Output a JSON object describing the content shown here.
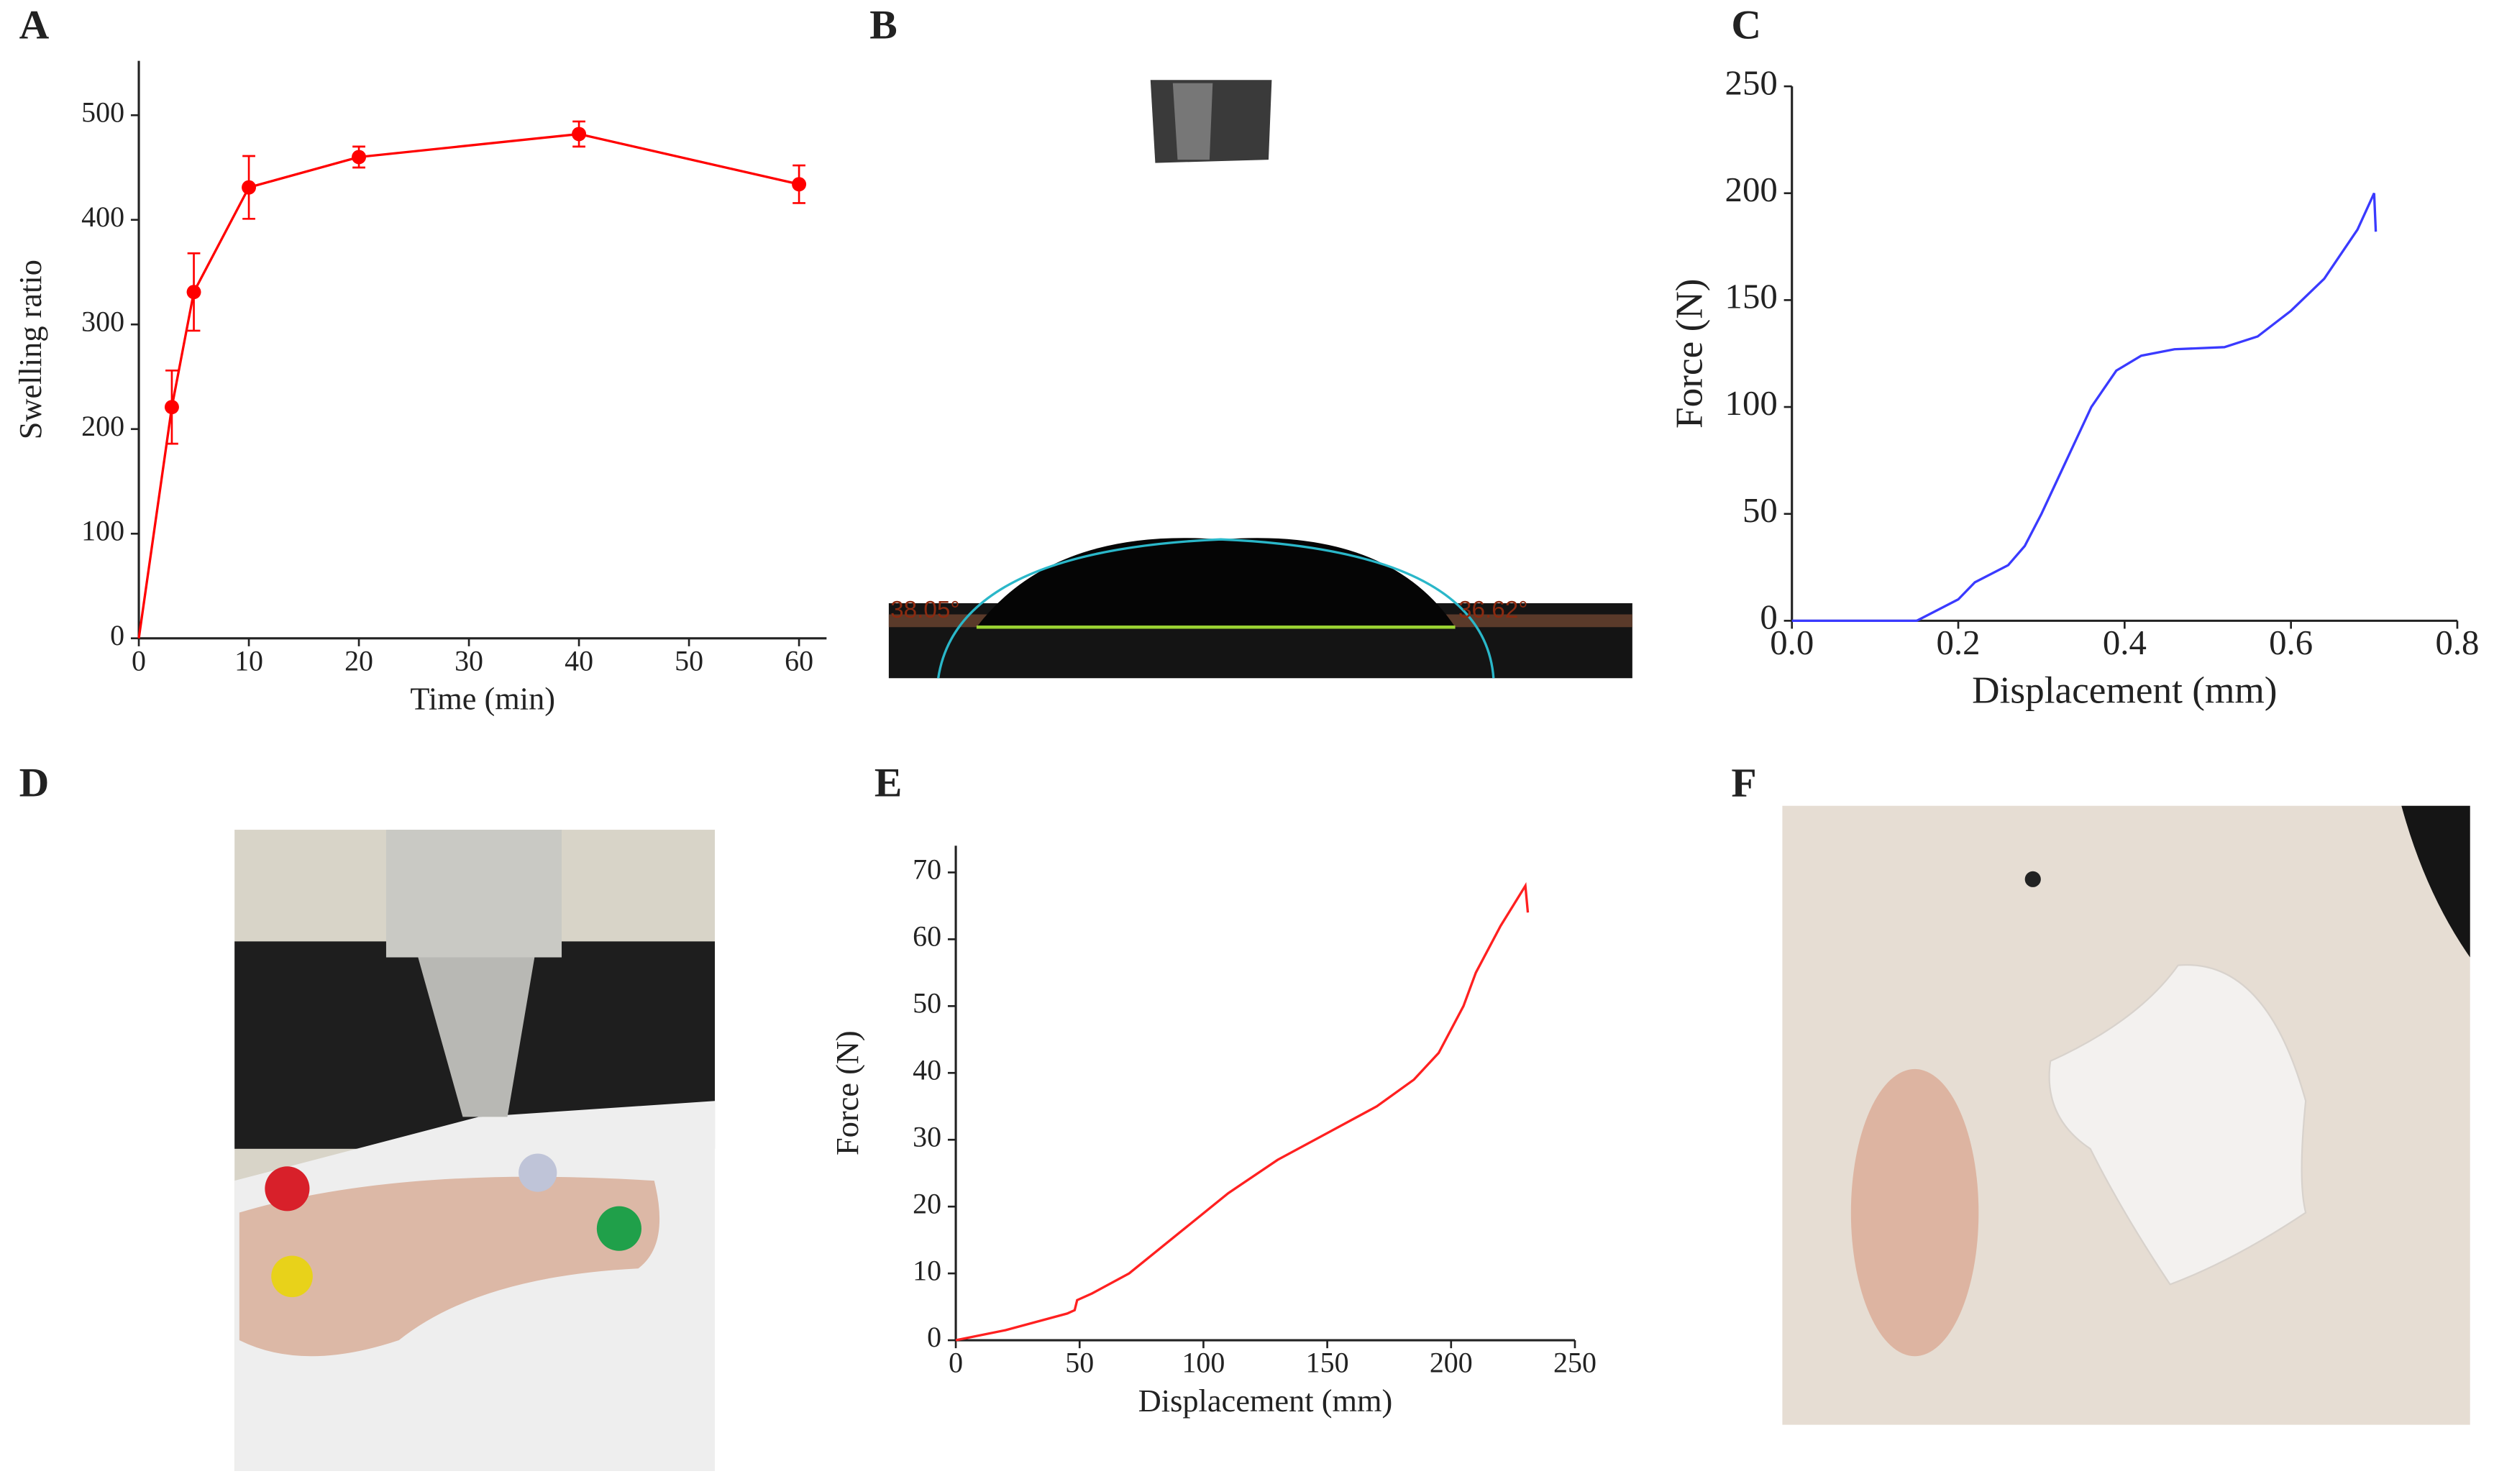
{
  "panel_labels": [
    "A",
    "B",
    "C",
    "D",
    "E",
    "F"
  ],
  "photo_b": {
    "angle_left": "38.05°",
    "angle_right": "36.62°"
  },
  "chart_data": [
    {
      "type": "line",
      "xlabel": "Time (min)",
      "ylabel": "Swelling ratio",
      "color": "#ff0000",
      "marker": "circle",
      "x": [
        0,
        3,
        5,
        10,
        20,
        40,
        60
      ],
      "values": [
        0,
        221,
        331,
        431,
        460,
        482,
        434
      ],
      "errors": [
        null,
        35,
        37,
        30,
        10,
        12,
        18
      ],
      "xlim": [
        0,
        62.5
      ],
      "xticks": [
        0,
        10,
        20,
        30,
        40,
        50,
        60
      ],
      "ylim": [
        0,
        552
      ],
      "yticks": [
        0,
        100,
        200,
        300,
        400,
        500
      ]
    },
    {
      "type": "line",
      "xlabel": "Displacement (mm)",
      "ylabel": "Force (N)",
      "color": "#3a3aff",
      "x": [
        0,
        0.15,
        0.2,
        0.22,
        0.26,
        0.28,
        0.3,
        0.33,
        0.36,
        0.39,
        0.42,
        0.46,
        0.52,
        0.56,
        0.6,
        0.64,
        0.68,
        0.7,
        0.702
      ],
      "values": [
        0,
        0,
        10,
        18,
        26,
        35,
        50,
        75,
        100,
        117,
        124,
        127,
        128,
        133,
        145,
        160,
        183,
        200,
        182
      ],
      "xlim": [
        0,
        0.8
      ],
      "xticks": [
        {
          "value": 0,
          "label": "0.0"
        },
        0.2,
        0.4,
        0.6,
        0.8
      ],
      "ylim": [
        0,
        250
      ],
      "yticks": [
        0,
        50,
        100,
        150,
        200,
        250
      ]
    },
    {
      "type": "line",
      "xlabel": "Displacement (mm)",
      "ylabel": "Force (N)",
      "color": "#ff2020",
      "x": [
        0,
        20,
        45,
        48,
        49,
        55,
        70,
        90,
        110,
        130,
        150,
        170,
        185,
        195,
        205,
        210,
        220,
        230,
        231
      ],
      "values": [
        0,
        1.5,
        4,
        4.5,
        6,
        7,
        10,
        16,
        22,
        27,
        31,
        35,
        39,
        43,
        50,
        55,
        62,
        68,
        64
      ],
      "xlim": [
        0,
        250
      ],
      "xticks": [
        0,
        50,
        100,
        150,
        200,
        250
      ],
      "ylim": [
        0,
        74
      ],
      "yticks": [
        0,
        10,
        20,
        30,
        40,
        50,
        60,
        70
      ]
    }
  ]
}
